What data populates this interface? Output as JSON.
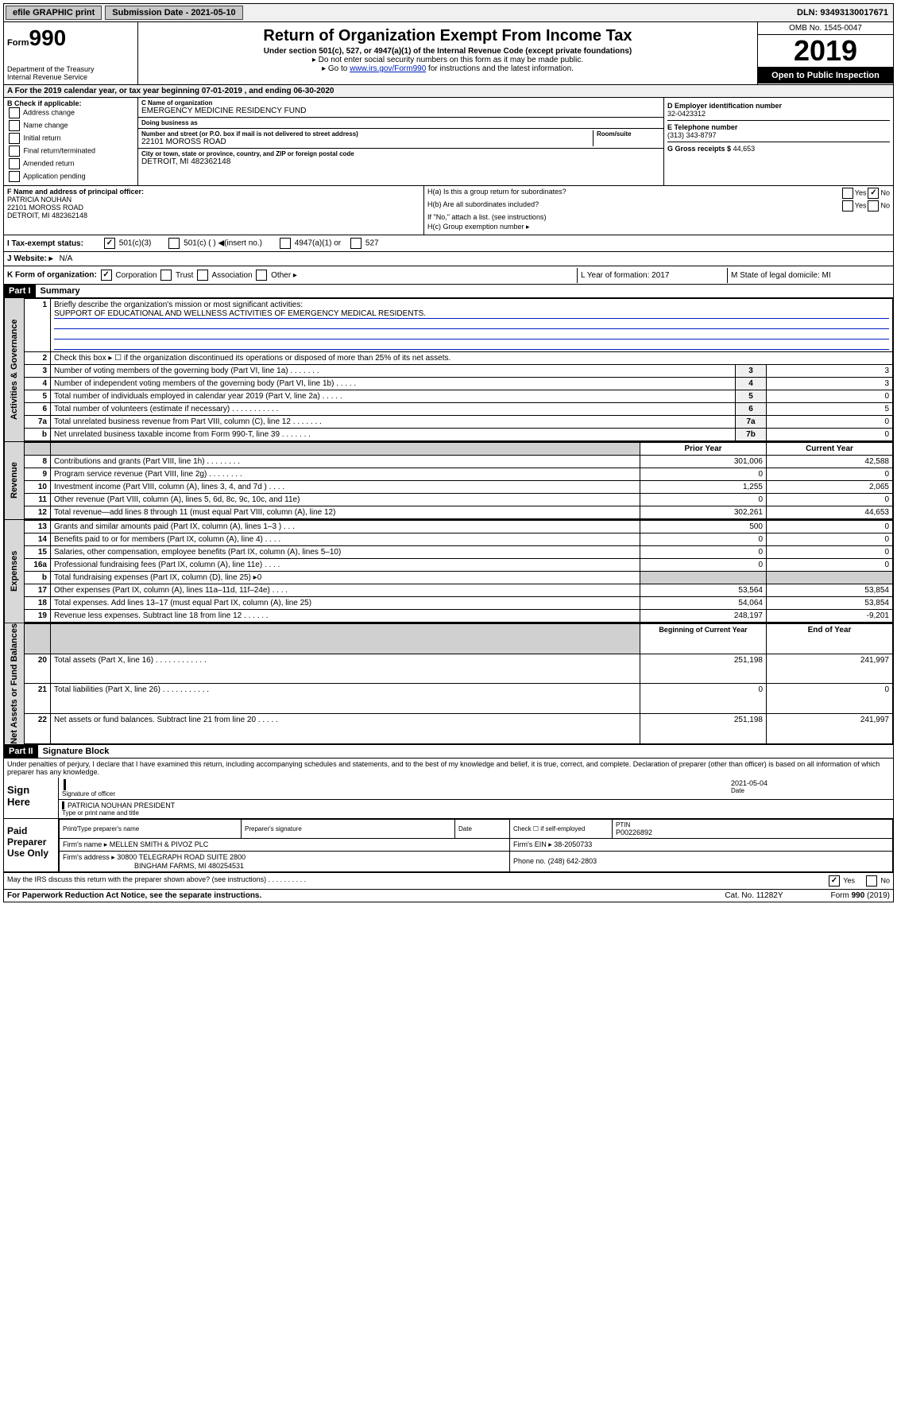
{
  "topbar": {
    "efile": "efile GRAPHIC print",
    "submission_label": "Submission Date - 2021-05-10",
    "dln": "DLN: 93493130017671"
  },
  "header": {
    "form_prefix": "Form",
    "form_number": "990",
    "title": "Return of Organization Exempt From Income Tax",
    "subtitle": "Under section 501(c), 527, or 4947(a)(1) of the Internal Revenue Code (except private foundations)",
    "note1": "▸ Do not enter social security numbers on this form as it may be made public.",
    "note2_pre": "▸ Go to ",
    "note2_link": "www.irs.gov/Form990",
    "note2_post": " for instructions and the latest information.",
    "dept": "Department of the Treasury\nInternal Revenue Service",
    "omb": "OMB No. 1545-0047",
    "year": "2019",
    "open_public": "Open to Public Inspection"
  },
  "line_a": "For the 2019 calendar year, or tax year beginning 07-01-2019    , and ending 06-30-2020",
  "box_b": {
    "label": "B Check if applicable:",
    "opts": [
      "Address change",
      "Name change",
      "Initial return",
      "Final return/terminated",
      "Amended return",
      "Application pending"
    ]
  },
  "box_c": {
    "name_label": "C Name of organization",
    "name": "EMERGENCY MEDICINE RESIDENCY FUND",
    "dba_label": "Doing business as",
    "addr_label": "Number and street (or P.O. box if mail is not delivered to street address)",
    "room_label": "Room/suite",
    "addr": "22101 MOROSS ROAD",
    "city_label": "City or town, state or province, country, and ZIP or foreign postal code",
    "city": "DETROIT, MI  482362148"
  },
  "box_d": {
    "label": "D Employer identification number",
    "ein": "32-0423312"
  },
  "box_e": {
    "label": "E Telephone number",
    "phone": "(313) 343-8797"
  },
  "box_g": {
    "label": "G Gross receipts $",
    "amount": "44,653"
  },
  "box_f": {
    "label": "F Name and address of principal officer:",
    "name": "PATRICIA NOUHAN",
    "addr1": "22101 MOROSS ROAD",
    "addr2": "DETROIT, MI  482362148"
  },
  "box_h": {
    "ha_label": "H(a)  Is this a group return for subordinates?",
    "hb_label": "H(b)  Are all subordinates included?",
    "hb_note": "If \"No,\" attach a list. (see instructions)",
    "hc_label": "H(c)  Group exemption number ▸"
  },
  "box_i": {
    "label": "I  Tax-exempt status:",
    "opt1": "501(c)(3)",
    "opt2": "501(c) (   ) ◀(insert no.)",
    "opt3": "4947(a)(1) or",
    "opt4": "527"
  },
  "box_j": {
    "label": "J  Website: ▸",
    "val": "N/A"
  },
  "box_k": {
    "label": "K Form of organization:",
    "opts": [
      "Corporation",
      "Trust",
      "Association",
      "Other ▸"
    ],
    "l_label": "L Year of formation: 2017",
    "m_label": "M State of legal domicile: MI"
  },
  "part1": {
    "header": "Part I",
    "title": "Summary",
    "mission_label": "Briefly describe the organization's mission or most significant activities:",
    "mission": "SUPPORT OF EDUCATIONAL AND WELLNESS ACTIVITIES OF EMERGENCY MEDICAL RESIDENTS.",
    "line2": "Check this box ▸ ☐  if the organization discontinued its operations or disposed of more than 25% of its net assets.",
    "sections": {
      "activities": "Activities & Governance",
      "revenue": "Revenue",
      "expenses": "Expenses",
      "netassets": "Net Assets or Fund Balances"
    },
    "col_prior": "Prior Year",
    "col_current": "Current Year",
    "col_begin": "Beginning of Current Year",
    "col_end": "End of Year",
    "rows_gov": [
      {
        "n": "3",
        "d": "Number of voting members of the governing body (Part VI, line 1a)  .    .    .    .    .    .    .",
        "box": "3",
        "v": "3"
      },
      {
        "n": "4",
        "d": "Number of independent voting members of the governing body (Part VI, line 1b)  .    .    .    .    .",
        "box": "4",
        "v": "3"
      },
      {
        "n": "5",
        "d": "Total number of individuals employed in calendar year 2019 (Part V, line 2a)  .    .    .    .    .",
        "box": "5",
        "v": "0"
      },
      {
        "n": "6",
        "d": "Total number of volunteers (estimate if necessary)   .    .    .    .    .    .    .    .    .    .    .",
        "box": "6",
        "v": "5"
      },
      {
        "n": "7a",
        "d": "Total unrelated business revenue from Part VIII, column (C), line 12  .    .    .    .    .    .    .",
        "box": "7a",
        "v": "0"
      },
      {
        "n": "b",
        "d": "Net unrelated business taxable income from Form 990-T, line 39   .    .    .    .    .    .    .",
        "box": "7b",
        "v": "0"
      }
    ],
    "rows_rev": [
      {
        "n": "8",
        "d": "Contributions and grants (Part VIII, line 1h)   .    .    .    .    .    .    .    .",
        "p": "301,006",
        "c": "42,588"
      },
      {
        "n": "9",
        "d": "Program service revenue (Part VIII, line 2g)  .    .    .    .    .    .    .    .",
        "p": "0",
        "c": "0"
      },
      {
        "n": "10",
        "d": "Investment income (Part VIII, column (A), lines 3, 4, and 7d )  .    .    .    .",
        "p": "1,255",
        "c": "2,065"
      },
      {
        "n": "11",
        "d": "Other revenue (Part VIII, column (A), lines 5, 6d, 8c, 9c, 10c, and 11e)",
        "p": "0",
        "c": "0"
      },
      {
        "n": "12",
        "d": "Total revenue—add lines 8 through 11 (must equal Part VIII, column (A), line 12)",
        "p": "302,261",
        "c": "44,653"
      }
    ],
    "rows_exp": [
      {
        "n": "13",
        "d": "Grants and similar amounts paid (Part IX, column (A), lines 1–3 )  .    .    .",
        "p": "500",
        "c": "0"
      },
      {
        "n": "14",
        "d": "Benefits paid to or for members (Part IX, column (A), line 4)  .    .    .    .",
        "p": "0",
        "c": "0"
      },
      {
        "n": "15",
        "d": "Salaries, other compensation, employee benefits (Part IX, column (A), lines 5–10)",
        "p": "0",
        "c": "0"
      },
      {
        "n": "16a",
        "d": "Professional fundraising fees (Part IX, column (A), line 11e)  .    .    .    .",
        "p": "0",
        "c": "0"
      },
      {
        "n": "b",
        "d": "Total fundraising expenses (Part IX, column (D), line 25) ▸0",
        "p": "",
        "c": "",
        "shade": true
      },
      {
        "n": "17",
        "d": "Other expenses (Part IX, column (A), lines 11a–11d, 11f–24e)  .    .    .    .",
        "p": "53,564",
        "c": "53,854"
      },
      {
        "n": "18",
        "d": "Total expenses. Add lines 13–17 (must equal Part IX, column (A), line 25)",
        "p": "54,064",
        "c": "53,854"
      },
      {
        "n": "19",
        "d": "Revenue less expenses. Subtract line 18 from line 12  .    .    .    .    .    .",
        "p": "248,197",
        "c": "-9,201"
      }
    ],
    "rows_net": [
      {
        "n": "20",
        "d": "Total assets (Part X, line 16)  .    .    .    .    .    .    .    .    .    .    .    .",
        "p": "251,198",
        "c": "241,997"
      },
      {
        "n": "21",
        "d": "Total liabilities (Part X, line 26)   .    .    .    .    .    .    .    .    .    .    .",
        "p": "0",
        "c": "0"
      },
      {
        "n": "22",
        "d": "Net assets or fund balances. Subtract line 21 from line 20  .    .    .    .    .",
        "p": "251,198",
        "c": "241,997"
      }
    ]
  },
  "part2": {
    "header": "Part II",
    "title": "Signature Block",
    "perjury": "Under penalties of perjury, I declare that I have examined this return, including accompanying schedules and statements, and to the best of my knowledge and belief, it is true, correct, and complete. Declaration of preparer (other than officer) is based on all information of which preparer has any knowledge.",
    "sign_here": "Sign Here",
    "sig_officer": "Signature of officer",
    "sig_date": "2021-05-04",
    "sig_date_label": "Date",
    "officer_name": "PATRICIA NOUHAN  PRESIDENT",
    "officer_name_label": "Type or print name and title",
    "paid_prep": "Paid Preparer Use Only",
    "prep_name_label": "Print/Type preparer's name",
    "prep_sig_label": "Preparer's signature",
    "prep_date_label": "Date",
    "prep_self_label": "Check ☐ if self-employed",
    "ptin_label": "PTIN",
    "ptin": "P00226892",
    "firm_name_label": "Firm's name      ▸",
    "firm_name": "MELLEN SMITH & PIVOZ PLC",
    "firm_ein_label": "Firm's EIN ▸",
    "firm_ein": "38-2050733",
    "firm_addr_label": "Firm's address ▸",
    "firm_addr1": "30800 TELEGRAPH ROAD SUITE 2800",
    "firm_addr2": "BINGHAM FARMS, MI  480254531",
    "phone_label": "Phone no.",
    "phone": "(248) 642-2803",
    "discuss": "May the IRS discuss this return with the preparer shown above? (see instructions)   .    .    .    .    .    .    .    .    .    .",
    "yes": "Yes",
    "// no checkbox not checked so just label": "",
    "no": "No"
  },
  "footer": {
    "pra": "For Paperwork Reduction Act Notice, see the separate instructions.",
    "cat": "Cat. No. 11282Y",
    "form": "Form 990 (2019)"
  },
  "colors": {
    "black": "#000000",
    "bg": "#ffffff",
    "shade": "#d8d8d8",
    "link": "#0020c0"
  }
}
